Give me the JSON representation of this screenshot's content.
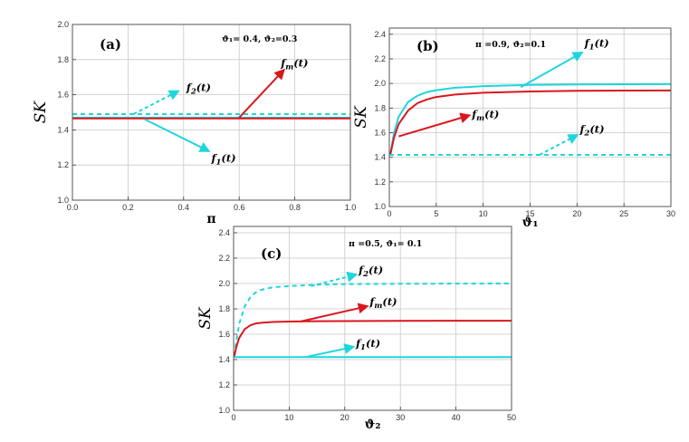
{
  "colors": {
    "cyan": "#1fd6dc",
    "red": "#d9171e",
    "grid": "#c9c9c9",
    "frame": "#555555"
  },
  "chart_data": [
    {
      "panel": "(a)",
      "type": "line",
      "params": "ϑ₁= 0.4, ϑ₂=0.3",
      "xlabel": "π",
      "ylabel": "SK",
      "xlim": [
        0,
        1
      ],
      "ylim": [
        1.0,
        2.0
      ],
      "xticks": [
        0,
        0.2,
        0.4,
        0.6,
        0.8,
        1.0
      ],
      "xtick_labels": [
        "0.0",
        "0.2",
        "0.4",
        "0.6",
        "0.8",
        "1.0"
      ],
      "yticks": [
        1.0,
        1.2,
        1.4,
        1.6,
        1.8,
        2.0
      ],
      "ytick_labels": [
        "1.0",
        "1.2",
        "1.4",
        "1.6",
        "1.8",
        "2.0"
      ],
      "series": [
        {
          "name": "f2(t)",
          "style": "dashed",
          "color": "cyan",
          "x": [
            0,
            1
          ],
          "y": [
            1.49,
            1.49
          ]
        },
        {
          "name": "f1(t)",
          "style": "solid",
          "color": "cyan",
          "x": [
            0,
            1
          ],
          "y": [
            1.47,
            1.47
          ]
        },
        {
          "name": "fm(t)",
          "style": "solid",
          "color": "red",
          "x": [
            0,
            1
          ],
          "y": [
            1.465,
            1.465
          ]
        }
      ],
      "annotations": [
        {
          "base": "f",
          "sub": "2",
          "suffix": "(t)",
          "color": "cyan",
          "dashed": true,
          "from": [
            0.22,
            1.49
          ],
          "to": [
            0.38,
            1.62
          ],
          "label_at": [
            0.41,
            1.62
          ]
        },
        {
          "base": "f",
          "sub": "m",
          "suffix": "(t)",
          "color": "red",
          "dashed": false,
          "from": [
            0.6,
            1.47
          ],
          "to": [
            0.76,
            1.74
          ],
          "label_at": [
            0.75,
            1.76
          ]
        },
        {
          "base": "f",
          "sub": "1",
          "suffix": "(t)",
          "color": "cyan",
          "dashed": false,
          "from": [
            0.26,
            1.46
          ],
          "to": [
            0.49,
            1.28
          ],
          "label_at": [
            0.5,
            1.22
          ]
        }
      ]
    },
    {
      "panel": "(b)",
      "type": "line",
      "params": "π =0.9,  ϑ₂=0.1",
      "xlabel": "ϑ₁",
      "ylabel": "SK",
      "xlim": [
        0,
        30
      ],
      "ylim": [
        1.0,
        2.45
      ],
      "xticks": [
        0,
        5,
        10,
        15,
        20,
        25,
        30
      ],
      "xtick_labels": [
        "0",
        "5",
        "10",
        "15",
        "20",
        "25",
        "30"
      ],
      "yticks": [
        1.0,
        1.2,
        1.4,
        1.6,
        1.8,
        2.0,
        2.2,
        2.4
      ],
      "ytick_labels": [
        "1.0",
        "1.2",
        "1.4",
        "1.6",
        "1.8",
        "2.0",
        "2.2",
        "2.4"
      ],
      "series": [
        {
          "name": "f1(t)",
          "style": "solid",
          "color": "cyan",
          "x": [
            0.1,
            0.5,
            1,
            2,
            3,
            4,
            5,
            7,
            10,
            15,
            20,
            25,
            30
          ],
          "y": [
            1.42,
            1.6,
            1.73,
            1.85,
            1.9,
            1.93,
            1.945,
            1.965,
            1.978,
            1.988,
            1.992,
            1.994,
            1.995
          ]
        },
        {
          "name": "fm(t)",
          "style": "solid",
          "color": "red",
          "x": [
            0.1,
            0.5,
            1,
            2,
            3,
            4,
            5,
            7,
            10,
            15,
            20,
            25,
            30
          ],
          "y": [
            1.42,
            1.56,
            1.67,
            1.78,
            1.84,
            1.87,
            1.89,
            1.91,
            1.925,
            1.935,
            1.94,
            1.942,
            1.943
          ]
        },
        {
          "name": "f2(t)",
          "style": "dashed",
          "color": "cyan",
          "x": [
            0,
            30
          ],
          "y": [
            1.42,
            1.42
          ]
        }
      ],
      "annotations": [
        {
          "base": "f",
          "sub": "1",
          "suffix": "(t)",
          "color": "cyan",
          "dashed": false,
          "from": [
            14,
            1.97
          ],
          "to": [
            20.5,
            2.25
          ],
          "label_at": [
            20.8,
            2.3
          ]
        },
        {
          "base": "f",
          "sub": "m",
          "suffix": "(t)",
          "color": "red",
          "dashed": false,
          "from": [
            1,
            1.57
          ],
          "to": [
            8.5,
            1.74
          ],
          "label_at": [
            8.8,
            1.72
          ]
        },
        {
          "base": "f",
          "sub": "2",
          "suffix": "(t)",
          "color": "cyan",
          "dashed": true,
          "from": [
            16,
            1.42
          ],
          "to": [
            20,
            1.58
          ],
          "label_at": [
            20.3,
            1.6
          ]
        }
      ]
    },
    {
      "panel": "(c)",
      "type": "line",
      "params": "π =0.5, ϑ₁= 0.1",
      "xlabel": "ϑ₂",
      "ylabel": "SK",
      "xlim": [
        0,
        50
      ],
      "ylim": [
        1.0,
        2.45
      ],
      "xticks": [
        0,
        10,
        20,
        30,
        40,
        50
      ],
      "xtick_labels": [
        "0",
        "10",
        "20",
        "30",
        "40",
        "50"
      ],
      "yticks": [
        1.0,
        1.2,
        1.4,
        1.6,
        1.8,
        2.0,
        2.2,
        2.4
      ],
      "ytick_labels": [
        "1.0",
        "1.2",
        "1.4",
        "1.6",
        "1.8",
        "2.0",
        "2.2",
        "2.4"
      ],
      "series": [
        {
          "name": "f2(t)",
          "style": "dashed",
          "color": "cyan",
          "x": [
            0.1,
            0.5,
            1,
            2,
            3,
            4,
            5,
            7,
            10,
            15,
            20,
            30,
            40,
            50
          ],
          "y": [
            1.43,
            1.55,
            1.68,
            1.82,
            1.89,
            1.93,
            1.95,
            1.97,
            1.98,
            1.99,
            1.995,
            1.998,
            1.999,
            2.0
          ]
        },
        {
          "name": "fm(t)",
          "style": "solid",
          "color": "red",
          "x": [
            0.1,
            0.5,
            1,
            2,
            3,
            4,
            5,
            7,
            10,
            15,
            20,
            30,
            40,
            50
          ],
          "y": [
            1.42,
            1.5,
            1.57,
            1.64,
            1.67,
            1.685,
            1.69,
            1.696,
            1.7,
            1.703,
            1.704,
            1.705,
            1.706,
            1.706
          ]
        },
        {
          "name": "f1(t)",
          "style": "solid",
          "color": "cyan",
          "x": [
            0,
            50
          ],
          "y": [
            1.42,
            1.42
          ]
        }
      ],
      "annotations": [
        {
          "base": "f",
          "sub": "2",
          "suffix": "(t)",
          "color": "cyan",
          "dashed": true,
          "from": [
            14,
            1.98
          ],
          "to": [
            22,
            2.07
          ],
          "label_at": [
            22.5,
            2.08
          ]
        },
        {
          "base": "f",
          "sub": "m",
          "suffix": "(t)",
          "color": "red",
          "dashed": false,
          "from": [
            12,
            1.7
          ],
          "to": [
            24,
            1.82
          ],
          "label_at": [
            24.5,
            1.83
          ]
        },
        {
          "base": "f",
          "sub": "1",
          "suffix": "(t)",
          "color": "cyan",
          "dashed": false,
          "from": [
            13,
            1.42
          ],
          "to": [
            21.5,
            1.5
          ],
          "label_at": [
            22,
            1.5
          ]
        }
      ]
    }
  ]
}
